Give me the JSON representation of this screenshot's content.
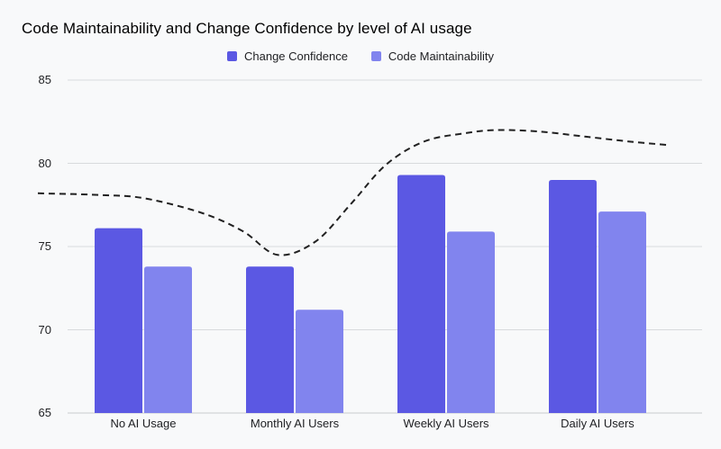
{
  "chart_data": {
    "type": "bar",
    "title": "Code Maintainability and Change Confidence by level of AI usage",
    "categories": [
      "No AI Usage",
      "Monthly AI Users",
      "Weekly AI Users",
      "Daily AI Users"
    ],
    "series": [
      {
        "name": "Change Confidence",
        "color": "#5b58e3",
        "values": [
          76.1,
          73.8,
          79.3,
          79.0
        ]
      },
      {
        "name": "Code Maintainability",
        "color": "#8184ee",
        "values": [
          73.8,
          71.2,
          75.9,
          77.1
        ]
      }
    ],
    "trend_line": {
      "style": "dashed",
      "color": "#212121",
      "points": [
        [
          42,
          78.2
        ],
        [
          110,
          78.1
        ],
        [
          160,
          77.9
        ],
        [
          225,
          77.0
        ],
        [
          270,
          75.9
        ],
        [
          308,
          74.5
        ],
        [
          350,
          75.3
        ],
        [
          390,
          77.6
        ],
        [
          428,
          79.9
        ],
        [
          470,
          81.3
        ],
        [
          515,
          81.8
        ],
        [
          552,
          82.0
        ],
        [
          600,
          81.9
        ],
        [
          650,
          81.6
        ],
        [
          700,
          81.3
        ],
        [
          741,
          81.1
        ]
      ]
    },
    "xlabel": "",
    "ylabel": "",
    "ylim": [
      65,
      85
    ],
    "y_ticks": [
      85,
      80,
      75,
      70,
      65
    ],
    "grid": "horizontal",
    "legend_position": "top-center",
    "colors": {
      "background": "#f8f9fa",
      "gridline": "#d8dadd",
      "baseline": "#c8cbce",
      "axis_text": "#202124",
      "title_text": "#000000"
    }
  }
}
